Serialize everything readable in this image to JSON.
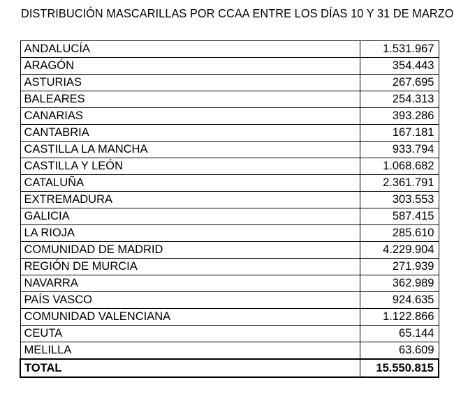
{
  "title": "DISTRIBUCIÓN MASCARILLAS POR CCAA ENTRE LOS DÍAS 10 Y 31 DE MARZO",
  "rows": [
    {
      "region": "ANDALUCÍA",
      "value": "1.531.967"
    },
    {
      "region": "ARAGÓN",
      "value": "354.443"
    },
    {
      "region": "ASTURIAS",
      "value": "267.695"
    },
    {
      "region": "BALEARES",
      "value": "254.313"
    },
    {
      "region": "CANARIAS",
      "value": "393.286"
    },
    {
      "region": "CANTABRIA",
      "value": "167.181"
    },
    {
      "region": "CASTILLA LA MANCHA",
      "value": "933.794"
    },
    {
      "region": "CASTILLA Y LEÓN",
      "value": "1.068.682"
    },
    {
      "region": "CATALUÑA",
      "value": "2.361.791"
    },
    {
      "region": "EXTREMADURA",
      "value": "303.553"
    },
    {
      "region": "GALICIA",
      "value": "587.415"
    },
    {
      "region": "LA RIOJA",
      "value": "285.610"
    },
    {
      "region": "COMUNIDAD DE MADRID",
      "value": "4.229.904"
    },
    {
      "region": "REGIÓN DE MURCIA",
      "value": "271.939"
    },
    {
      "region": "NAVARRA",
      "value": "362.989"
    },
    {
      "region": "PAÍS VASCO",
      "value": "924.635"
    },
    {
      "region": "COMUNIDAD VALENCIANA",
      "value": "1.122.866"
    },
    {
      "region": "CEUTA",
      "value": "65.144"
    },
    {
      "region": "MELILLA",
      "value": "63.609"
    }
  ],
  "total": {
    "label": "TOTAL",
    "value": "15.550.815"
  }
}
